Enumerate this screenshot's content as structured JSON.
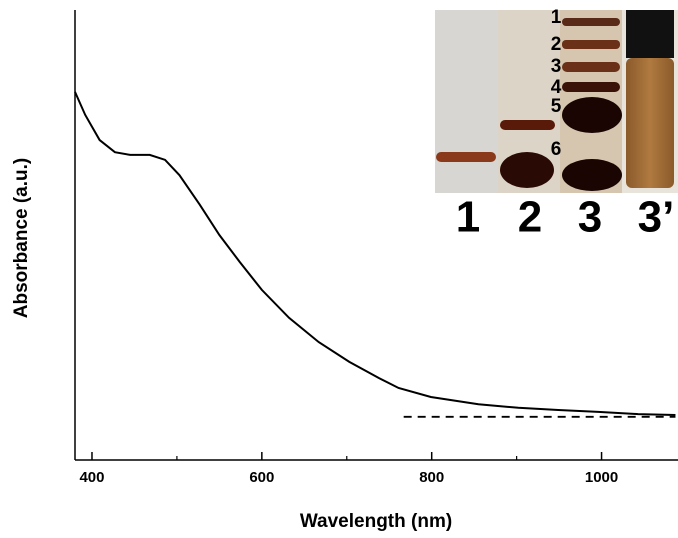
{
  "chart_data": {
    "type": "line",
    "x_label": "Wavelength (nm)",
    "y_label": "Absorbance (a.u.)",
    "xlim": [
      380,
      1090
    ],
    "ylim": [
      0,
      1
    ],
    "xticks": [
      400,
      600,
      800,
      1000
    ],
    "xminor_ticks": [
      500,
      700,
      900
    ],
    "series": [
      {
        "color": "#000000",
        "dash": false,
        "x": [
          380,
          392,
          409,
          427,
          445,
          468,
          486,
          503,
          527,
          550,
          574,
          600,
          632,
          667,
          703,
          738,
          761,
          799,
          855,
          902,
          949,
          996,
          1043,
          1087
        ],
        "values": [
          0.818,
          0.767,
          0.711,
          0.684,
          0.678,
          0.678,
          0.667,
          0.633,
          0.567,
          0.5,
          0.44,
          0.378,
          0.316,
          0.262,
          0.218,
          0.182,
          0.16,
          0.14,
          0.124,
          0.116,
          0.111,
          0.107,
          0.102,
          0.1
        ]
      },
      {
        "color": "#000000",
        "dash": true,
        "x": [
          767,
          1087
        ],
        "values": [
          0.096,
          0.096
        ]
      }
    ],
    "inset": {
      "band_labels": [
        "1",
        "2",
        "3",
        "4",
        "5",
        "6"
      ],
      "lane_labels": [
        "1",
        "2",
        "3",
        "3’"
      ]
    }
  }
}
